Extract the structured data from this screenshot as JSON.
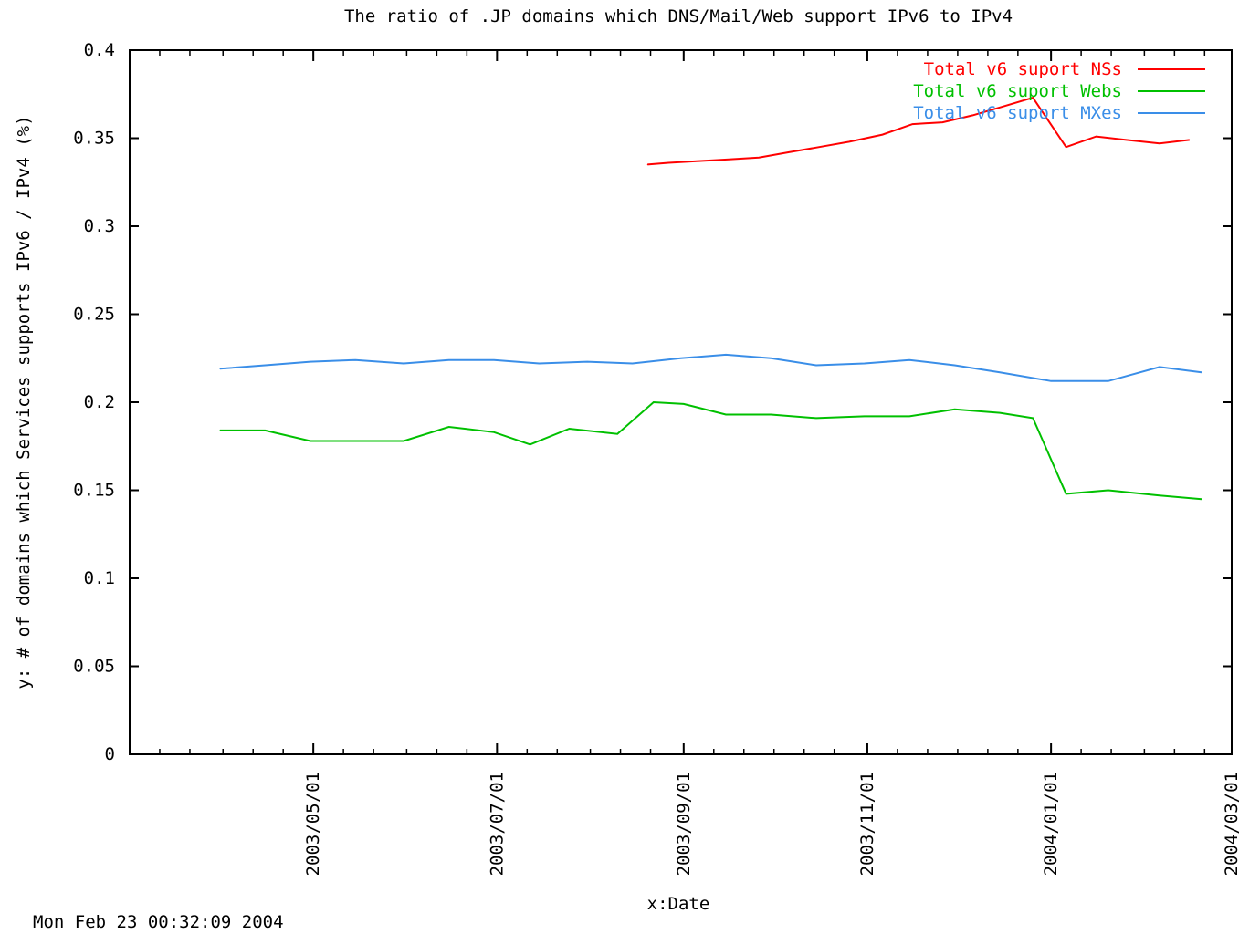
{
  "chart_data": {
    "type": "line",
    "title": "The ratio of .JP domains which DNS/Mail/Web support IPv6 to IPv4",
    "xlabel": "x:Date",
    "ylabel": "y: # of domains which Services supports IPv6 / IPv4 (%)",
    "ylim": [
      0,
      0.4
    ],
    "yticks": [
      0,
      0.05,
      0.1,
      0.15,
      0.2,
      0.25,
      0.3,
      0.35,
      0.4
    ],
    "ytick_labels": [
      "0",
      "0.05",
      "0.1",
      "0.15",
      "0.2",
      "0.25",
      "0.3",
      "0.35",
      "0.4"
    ],
    "xlim": [
      "2003-03-01",
      "2004-03-01"
    ],
    "xticks": [
      "2003-05-01",
      "2003-07-01",
      "2003-09-01",
      "2003-11-01",
      "2004-01-01",
      "2004-03-01"
    ],
    "xtick_labels": [
      "2003/05/01",
      "2003/07/01",
      "2003/09/01",
      "2003/11/01",
      "2004/01/01",
      "2004/03/01"
    ],
    "legend_position": "top-right",
    "grid": false,
    "series": [
      {
        "name": "Total v6 suport NSs",
        "color": "#ff0000",
        "x": [
          "2003-08-20",
          "2003-08-27",
          "2003-09-06",
          "2003-09-16",
          "2003-09-26",
          "2003-10-06",
          "2003-10-16",
          "2003-10-26",
          "2003-11-06",
          "2003-11-16",
          "2003-11-26",
          "2003-12-06",
          "2003-12-16",
          "2003-12-26",
          "2004-01-06",
          "2004-01-16",
          "2004-01-26",
          "2004-02-06",
          "2004-02-16"
        ],
        "values": [
          0.335,
          0.336,
          0.337,
          0.338,
          0.339,
          0.342,
          0.345,
          0.348,
          0.352,
          0.358,
          0.359,
          0.363,
          0.368,
          0.373,
          0.345,
          0.351,
          0.349,
          0.347,
          0.349
        ]
      },
      {
        "name": "Total v6 suport Webs",
        "color": "#00c000",
        "x": [
          "2003-03-31",
          "2003-04-15",
          "2003-04-30",
          "2003-05-15",
          "2003-05-31",
          "2003-06-15",
          "2003-06-30",
          "2003-07-12",
          "2003-07-25",
          "2003-08-10",
          "2003-08-22",
          "2003-09-01",
          "2003-09-15",
          "2003-09-30",
          "2003-10-15",
          "2003-10-31",
          "2003-11-15",
          "2003-11-30",
          "2003-12-15",
          "2003-12-26",
          "2004-01-06",
          "2004-01-20",
          "2004-02-06",
          "2004-02-20"
        ],
        "values": [
          0.184,
          0.184,
          0.178,
          0.178,
          0.178,
          0.186,
          0.183,
          0.176,
          0.185,
          0.182,
          0.2,
          0.199,
          0.193,
          0.193,
          0.191,
          0.192,
          0.192,
          0.196,
          0.194,
          0.191,
          0.148,
          0.15,
          0.147,
          0.145
        ]
      },
      {
        "name": "Total v6 suport MXes",
        "color": "#3a8ee8",
        "x": [
          "2003-03-31",
          "2003-04-15",
          "2003-04-30",
          "2003-05-15",
          "2003-05-31",
          "2003-06-15",
          "2003-06-30",
          "2003-07-15",
          "2003-07-31",
          "2003-08-15",
          "2003-08-31",
          "2003-09-15",
          "2003-09-30",
          "2003-10-15",
          "2003-10-31",
          "2003-11-15",
          "2003-11-30",
          "2003-12-15",
          "2004-01-01",
          "2004-01-20",
          "2004-02-06",
          "2004-02-20"
        ],
        "values": [
          0.219,
          0.221,
          0.223,
          0.224,
          0.222,
          0.224,
          0.224,
          0.222,
          0.223,
          0.222,
          0.225,
          0.227,
          0.225,
          0.221,
          0.222,
          0.224,
          0.221,
          0.217,
          0.212,
          0.212,
          0.22,
          0.217
        ]
      }
    ]
  },
  "footer": {
    "timestamp": "Mon Feb 23 00:32:09 2004"
  }
}
